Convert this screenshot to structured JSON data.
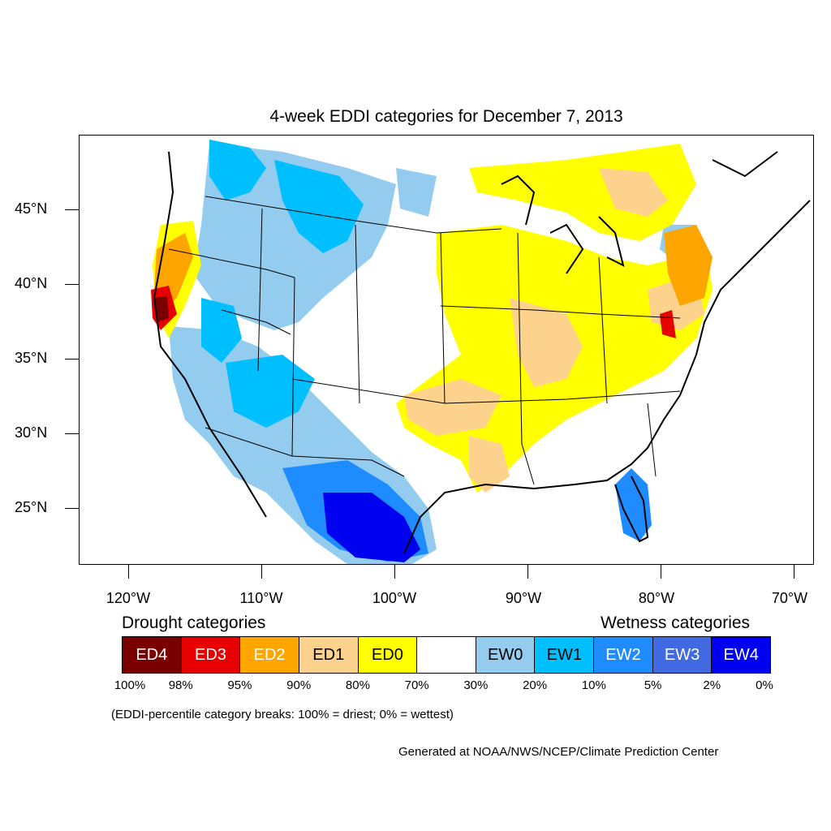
{
  "title": "4-week EDDI categories for December 7, 2013",
  "map": {
    "lat_labels": [
      "45°N",
      "40°N",
      "35°N",
      "30°N",
      "25°N"
    ],
    "lon_labels": [
      "120°W",
      "110°W",
      "100°W",
      "90°W",
      "80°W",
      "70°W"
    ]
  },
  "legend": {
    "drought_heading": "Drought categories",
    "wetness_heading": "Wetness categories",
    "categories": [
      {
        "label": "ED4",
        "color": "#7a0000",
        "text_color": "#ffffff"
      },
      {
        "label": "ED3",
        "color": "#e60000",
        "text_color": "#ffffff"
      },
      {
        "label": "ED2",
        "color": "#ffa500",
        "text_color": "#ffffff"
      },
      {
        "label": "ED1",
        "color": "#fcd28c",
        "text_color": "#000000"
      },
      {
        "label": "ED0",
        "color": "#ffff00",
        "text_color": "#000000"
      },
      {
        "label": "",
        "color": "#ffffff",
        "text_color": "#000000"
      },
      {
        "label": "EW0",
        "color": "#93ccee",
        "text_color": "#000000"
      },
      {
        "label": "EW1",
        "color": "#00bfff",
        "text_color": "#000000"
      },
      {
        "label": "EW2",
        "color": "#1e8cff",
        "text_color": "#ffffff"
      },
      {
        "label": "EW3",
        "color": "#4169e1",
        "text_color": "#ffffff"
      },
      {
        "label": "EW4",
        "color": "#0000f0",
        "text_color": "#ffffff"
      }
    ],
    "breaks": [
      "100%",
      "98%",
      "95%",
      "90%",
      "80%",
      "70%",
      "30%",
      "20%",
      "10%",
      "5%",
      "2%",
      "0%"
    ],
    "note": "(EDDI-percentile category breaks: 100% = driest; 0% = wettest)"
  },
  "credit": "Generated at NOAA/NWS/NCEP/Climate Prediction Center"
}
